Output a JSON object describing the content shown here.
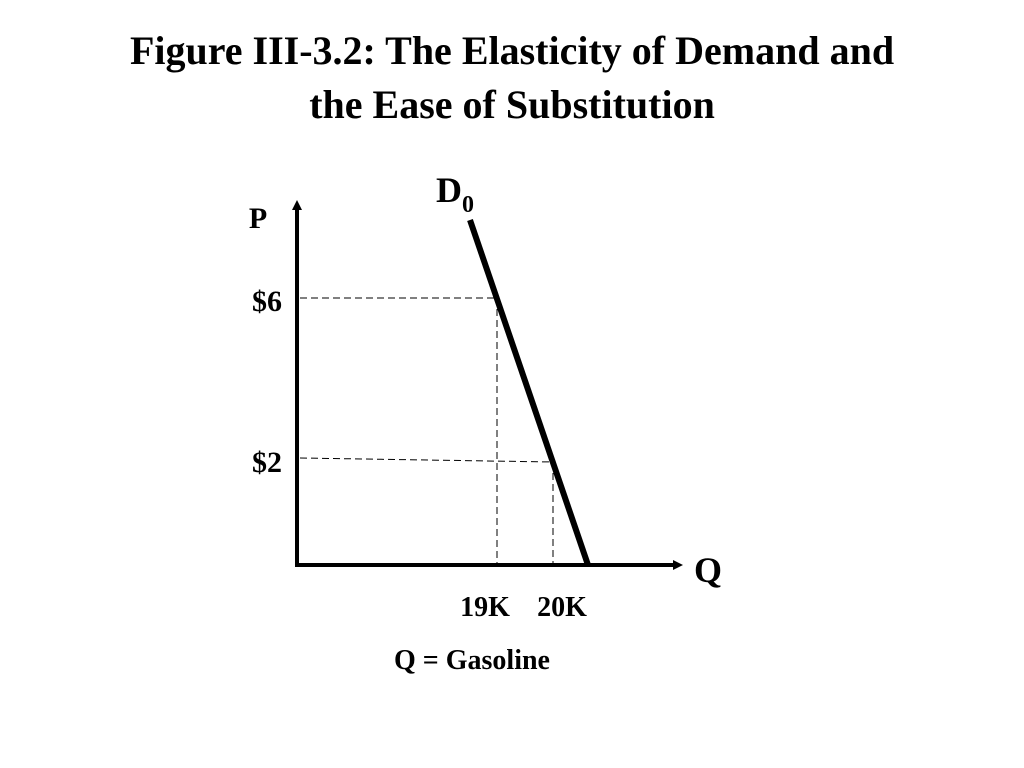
{
  "title_lines": [
    "Figure III-3.2: The Elasticity of Demand and",
    "the Ease of Substitution"
  ],
  "axes": {
    "y_label": "P",
    "x_label": "Q"
  },
  "curve_label": {
    "text": "D",
    "subscript": "0"
  },
  "price_labels": [
    "$6",
    "$2"
  ],
  "quantity_labels": [
    "19K",
    "20K"
  ],
  "caption": "Q = Gasoline"
}
